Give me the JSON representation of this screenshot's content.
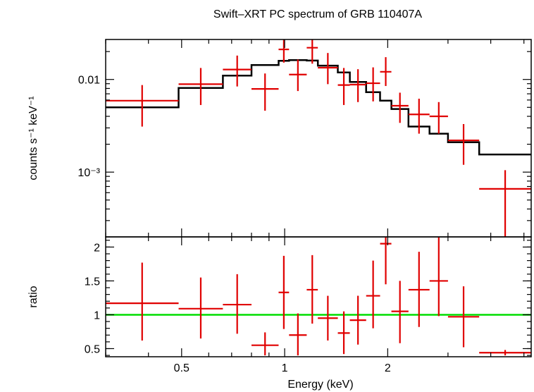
{
  "chart_data": [
    {
      "type": "scatter",
      "panel": "spectrum",
      "title": "Swift–XRT PC spectrum of GRB 110407A",
      "ylabel": "counts s⁻¹ keV⁻¹",
      "xlabel": "",
      "x_scale": "log",
      "y_scale": "log",
      "xlim": [
        0.3,
        5.25
      ],
      "ylim": [
        0.0002,
        0.027
      ],
      "y_ticks": [
        {
          "value": 0.01,
          "label": "0.01"
        },
        {
          "value": 0.001,
          "label": "10⁻³"
        }
      ],
      "series": [
        {
          "color": "#e00000",
          "points": [
            {
              "xlo": 0.3,
              "xhi": 0.49,
              "y": 0.0059,
              "ylo": 0.0031,
              "yhi": 0.0087
            },
            {
              "xlo": 0.49,
              "xhi": 0.66,
              "y": 0.0089,
              "ylo": 0.0053,
              "yhi": 0.0133
            },
            {
              "xlo": 0.66,
              "xhi": 0.8,
              "y": 0.0128,
              "ylo": 0.0084,
              "yhi": 0.0181
            },
            {
              "xlo": 0.8,
              "xhi": 0.96,
              "y": 0.0079,
              "ylo": 0.0046,
              "yhi": 0.0116
            },
            {
              "xlo": 0.96,
              "xhi": 1.03,
              "y": 0.0211,
              "ylo": 0.0152,
              "yhi": 0.0272
            },
            {
              "xlo": 1.03,
              "xhi": 1.16,
              "y": 0.0113,
              "ylo": 0.0075,
              "yhi": 0.0164
            },
            {
              "xlo": 1.16,
              "xhi": 1.25,
              "y": 0.022,
              "ylo": 0.0148,
              "yhi": 0.028
            },
            {
              "xlo": 1.25,
              "xhi": 1.43,
              "y": 0.0134,
              "ylo": 0.0089,
              "yhi": 0.0193
            },
            {
              "xlo": 1.43,
              "xhi": 1.55,
              "y": 0.0087,
              "ylo": 0.0053,
              "yhi": 0.0133
            },
            {
              "xlo": 1.55,
              "xhi": 1.73,
              "y": 0.0088,
              "ylo": 0.0057,
              "yhi": 0.0129
            },
            {
              "xlo": 1.73,
              "xhi": 1.9,
              "y": 0.0091,
              "ylo": 0.0058,
              "yhi": 0.0135
            },
            {
              "xlo": 1.9,
              "xhi": 2.05,
              "y": 0.0121,
              "ylo": 0.0085,
              "yhi": 0.0174
            },
            {
              "xlo": 2.05,
              "xhi": 2.3,
              "y": 0.0052,
              "ylo": 0.0034,
              "yhi": 0.0072
            },
            {
              "xlo": 2.3,
              "xhi": 2.65,
              "y": 0.0042,
              "ylo": 0.0026,
              "yhi": 0.0062
            },
            {
              "xlo": 2.65,
              "xhi": 3.0,
              "y": 0.004,
              "ylo": 0.0026,
              "yhi": 0.0057
            },
            {
              "xlo": 3.0,
              "xhi": 3.7,
              "y": 0.0022,
              "ylo": 0.0012,
              "yhi": 0.0033
            },
            {
              "xlo": 3.7,
              "xhi": 5.25,
              "y": 0.00066,
              "ylo": 0.0002,
              "yhi": 0.00105
            }
          ]
        },
        {
          "color": "#000000",
          "type": "step",
          "edges": [
            0.3,
            0.49,
            0.66,
            0.8,
            0.96,
            1.03,
            1.16,
            1.25,
            1.43,
            1.55,
            1.73,
            1.9,
            2.05,
            2.3,
            2.65,
            3.0,
            3.7,
            5.25
          ],
          "values": [
            0.005,
            0.0081,
            0.011,
            0.0143,
            0.0159,
            0.0162,
            0.016,
            0.0141,
            0.0119,
            0.0094,
            0.0073,
            0.0059,
            0.0048,
            0.0031,
            0.0026,
            0.0021,
            0.00155
          ]
        }
      ]
    },
    {
      "type": "scatter",
      "panel": "ratio",
      "xlabel": "Energy (keV)",
      "ylabel": "ratio",
      "x_scale": "log",
      "y_scale": "linear",
      "xlim": [
        0.3,
        5.25
      ],
      "ylim": [
        0.38,
        2.15
      ],
      "x_ticks": [
        {
          "value": 0.5,
          "label": "0.5"
        },
        {
          "value": 1,
          "label": "1"
        },
        {
          "value": 2,
          "label": "2"
        }
      ],
      "y_ticks": [
        {
          "value": 0.5,
          "label": "0.5"
        },
        {
          "value": 1,
          "label": "1"
        },
        {
          "value": 1.5,
          "label": "1.5"
        },
        {
          "value": 2,
          "label": "2"
        }
      ],
      "reference_line": {
        "y": 1,
        "color": "#00dd00"
      },
      "series": [
        {
          "color": "#e00000",
          "points": [
            {
              "xlo": 0.3,
              "xhi": 0.49,
              "y": 1.17,
              "ylo": 0.62,
              "yhi": 1.77
            },
            {
              "xlo": 0.49,
              "xhi": 0.66,
              "y": 1.09,
              "ylo": 0.65,
              "yhi": 1.55
            },
            {
              "xlo": 0.66,
              "xhi": 0.8,
              "y": 1.15,
              "ylo": 0.72,
              "yhi": 1.6
            },
            {
              "xlo": 0.8,
              "xhi": 0.96,
              "y": 0.55,
              "ylo": 0.4,
              "yhi": 0.74
            },
            {
              "xlo": 0.96,
              "xhi": 1.03,
              "y": 1.33,
              "ylo": 0.79,
              "yhi": 1.87
            },
            {
              "xlo": 1.03,
              "xhi": 1.16,
              "y": 0.7,
              "ylo": 0.4,
              "yhi": 1.02
            },
            {
              "xlo": 1.16,
              "xhi": 1.25,
              "y": 1.37,
              "ylo": 0.87,
              "yhi": 1.88
            },
            {
              "xlo": 1.25,
              "xhi": 1.43,
              "y": 0.95,
              "ylo": 0.62,
              "yhi": 1.28
            },
            {
              "xlo": 1.43,
              "xhi": 1.55,
              "y": 0.73,
              "ylo": 0.42,
              "yhi": 1.05
            },
            {
              "xlo": 1.55,
              "xhi": 1.73,
              "y": 0.92,
              "ylo": 0.56,
              "yhi": 1.28
            },
            {
              "xlo": 1.73,
              "xhi": 1.9,
              "y": 1.28,
              "ylo": 0.8,
              "yhi": 1.8
            },
            {
              "xlo": 1.9,
              "xhi": 2.05,
              "y": 2.05,
              "ylo": 1.45,
              "yhi": 2.15
            },
            {
              "xlo": 2.05,
              "xhi": 2.3,
              "y": 1.05,
              "ylo": 0.58,
              "yhi": 1.5
            },
            {
              "xlo": 2.3,
              "xhi": 2.65,
              "y": 1.37,
              "ylo": 0.82,
              "yhi": 1.93
            },
            {
              "xlo": 2.65,
              "xhi": 3.0,
              "y": 1.5,
              "ylo": 0.98,
              "yhi": 2.15
            },
            {
              "xlo": 3.0,
              "xhi": 3.7,
              "y": 0.97,
              "ylo": 0.52,
              "yhi": 1.42
            },
            {
              "xlo": 3.7,
              "xhi": 5.25,
              "y": 0.44,
              "ylo": 0.4,
              "yhi": 0.48
            }
          ]
        }
      ]
    }
  ]
}
